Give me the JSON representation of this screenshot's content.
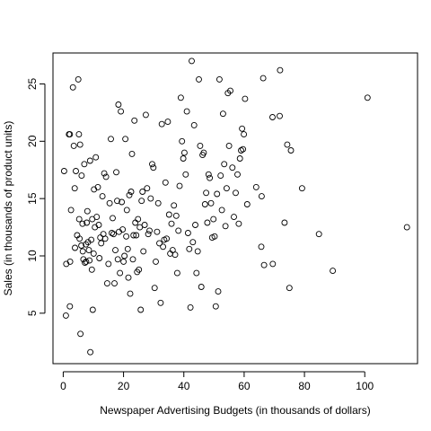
{
  "chart_data": {
    "type": "scatter",
    "title": "",
    "xlabel": "Newspaper Advertising Budgets (in thousands of dollars)",
    "ylabel": "Sales (in thousands of product units)",
    "xlim": [
      -3.4,
      117.5
    ],
    "ylim": [
      0.6,
      27.7
    ],
    "xticks": [
      0,
      20,
      40,
      60,
      80,
      100
    ],
    "yticks": [
      5,
      10,
      15,
      20,
      25
    ],
    "grid": false,
    "legend": "none",
    "points": [
      [
        0.3,
        17.4
      ],
      [
        0.9,
        4.8
      ],
      [
        1.0,
        9.3
      ],
      [
        1.9,
        20.6
      ],
      [
        2.2,
        20.6
      ],
      [
        2.2,
        5.6
      ],
      [
        2.3,
        9.5
      ],
      [
        2.6,
        14.0
      ],
      [
        3.2,
        24.7
      ],
      [
        3.5,
        19.6
      ],
      [
        3.8,
        15.9
      ],
      [
        3.9,
        10.7
      ],
      [
        4.2,
        17.4
      ],
      [
        4.6,
        11.8
      ],
      [
        5.0,
        25.4
      ],
      [
        5.2,
        20.6
      ],
      [
        5.3,
        13.2
      ],
      [
        5.4,
        11.5
      ],
      [
        5.6,
        19.7
      ],
      [
        5.7,
        3.2
      ],
      [
        6.0,
        10.9
      ],
      [
        6.1,
        17.0
      ],
      [
        6.4,
        12.8
      ],
      [
        6.5,
        10.4
      ],
      [
        6.7,
        9.7
      ],
      [
        7.0,
        18.0
      ],
      [
        7.2,
        9.4
      ],
      [
        7.5,
        11.0
      ],
      [
        7.6,
        9.5
      ],
      [
        7.8,
        12.9
      ],
      [
        8.0,
        13.9
      ],
      [
        8.2,
        11.2
      ],
      [
        8.5,
        10.5
      ],
      [
        8.7,
        9.6
      ],
      [
        8.9,
        18.3
      ],
      [
        9.0,
        1.6
      ],
      [
        9.3,
        11.4
      ],
      [
        9.5,
        8.8
      ],
      [
        9.6,
        13.2
      ],
      [
        9.8,
        5.3
      ],
      [
        10.1,
        10.2
      ],
      [
        10.2,
        15.8
      ],
      [
        10.5,
        12.5
      ],
      [
        10.8,
        18.6
      ],
      [
        11.1,
        13.4
      ],
      [
        11.5,
        16.0
      ],
      [
        11.8,
        12.7
      ],
      [
        12.0,
        9.8
      ],
      [
        12.3,
        11.6
      ],
      [
        12.6,
        11.1
      ],
      [
        13.0,
        15.2
      ],
      [
        13.3,
        11.9
      ],
      [
        13.6,
        17.2
      ],
      [
        13.9,
        11.5
      ],
      [
        14.2,
        16.9
      ],
      [
        14.6,
        7.6
      ],
      [
        15.0,
        9.3
      ],
      [
        15.4,
        14.6
      ],
      [
        15.8,
        20.2
      ],
      [
        16.1,
        12.0
      ],
      [
        16.4,
        13.3
      ],
      [
        16.7,
        11.9
      ],
      [
        17.0,
        7.6
      ],
      [
        17.3,
        10.5
      ],
      [
        17.6,
        17.3
      ],
      [
        17.9,
        14.8
      ],
      [
        18.1,
        9.7
      ],
      [
        18.3,
        23.2
      ],
      [
        18.5,
        12.1
      ],
      [
        18.8,
        8.5
      ],
      [
        19.1,
        22.6
      ],
      [
        19.4,
        14.7
      ],
      [
        19.7,
        12.3
      ],
      [
        20.0,
        9.5
      ],
      [
        20.3,
        10.0
      ],
      [
        20.6,
        20.2
      ],
      [
        20.9,
        11.7
      ],
      [
        21.1,
        14.0
      ],
      [
        21.4,
        10.6
      ],
      [
        21.6,
        8.1
      ],
      [
        21.9,
        15.3
      ],
      [
        22.2,
        6.7
      ],
      [
        22.5,
        15.6
      ],
      [
        22.8,
        18.9
      ],
      [
        23.1,
        9.7
      ],
      [
        23.3,
        11.8
      ],
      [
        23.6,
        21.8
      ],
      [
        23.9,
        12.9
      ],
      [
        24.2,
        11.8
      ],
      [
        24.5,
        8.6
      ],
      [
        24.8,
        13.2
      ],
      [
        25.1,
        8.8
      ],
      [
        25.4,
        12.5
      ],
      [
        25.7,
        5.3
      ],
      [
        26.0,
        14.8
      ],
      [
        26.3,
        15.6
      ],
      [
        26.6,
        10.4
      ],
      [
        27.0,
        12.7
      ],
      [
        27.4,
        22.3
      ],
      [
        27.8,
        15.9
      ],
      [
        28.2,
        11.9
      ],
      [
        28.6,
        12.2
      ],
      [
        29.0,
        15.0
      ],
      [
        29.5,
        18.0
      ],
      [
        29.9,
        17.7
      ],
      [
        30.3,
        7.2
      ],
      [
        30.7,
        9.5
      ],
      [
        31.1,
        12.1
      ],
      [
        31.5,
        14.6
      ],
      [
        31.9,
        11.1
      ],
      [
        32.3,
        5.9
      ],
      [
        32.7,
        21.5
      ],
      [
        33.1,
        10.8
      ],
      [
        33.5,
        11.4
      ],
      [
        33.9,
        16.4
      ],
      [
        34.3,
        11.5
      ],
      [
        34.7,
        21.7
      ],
      [
        35.1,
        13.6
      ],
      [
        35.5,
        10.2
      ],
      [
        35.9,
        12.8
      ],
      [
        36.3,
        10.5
      ],
      [
        36.7,
        14.4
      ],
      [
        37.1,
        10.1
      ],
      [
        37.5,
        13.5
      ],
      [
        37.8,
        8.5
      ],
      [
        38.2,
        12.2
      ],
      [
        38.6,
        16.1
      ],
      [
        39.0,
        23.8
      ],
      [
        39.4,
        20.0
      ],
      [
        39.8,
        18.5
      ],
      [
        40.2,
        19.0
      ],
      [
        40.6,
        17.1
      ],
      [
        41.0,
        22.6
      ],
      [
        41.4,
        12.0
      ],
      [
        41.8,
        10.6
      ],
      [
        42.2,
        5.5
      ],
      [
        42.6,
        27.0
      ],
      [
        43.0,
        11.2
      ],
      [
        43.4,
        21.4
      ],
      [
        43.8,
        12.7
      ],
      [
        44.2,
        8.5
      ],
      [
        44.6,
        10.4
      ],
      [
        45.0,
        25.4
      ],
      [
        45.4,
        19.6
      ],
      [
        45.8,
        7.3
      ],
      [
        46.2,
        18.8
      ],
      [
        46.6,
        19.0
      ],
      [
        47.0,
        14.5
      ],
      [
        47.4,
        15.5
      ],
      [
        47.8,
        12.9
      ],
      [
        48.2,
        17.1
      ],
      [
        48.6,
        16.8
      ],
      [
        49.0,
        14.6
      ],
      [
        49.4,
        11.6
      ],
      [
        49.8,
        13.2
      ],
      [
        50.2,
        11.7
      ],
      [
        50.6,
        5.6
      ],
      [
        51.0,
        15.4
      ],
      [
        51.4,
        6.9
      ],
      [
        51.8,
        25.4
      ],
      [
        52.2,
        17.0
      ],
      [
        52.6,
        14.0
      ],
      [
        53.0,
        22.4
      ],
      [
        53.4,
        18.0
      ],
      [
        53.8,
        12.6
      ],
      [
        54.2,
        15.9
      ],
      [
        54.6,
        24.2
      ],
      [
        55.0,
        19.6
      ],
      [
        55.4,
        24.4
      ],
      [
        56.1,
        17.7
      ],
      [
        56.6,
        13.4
      ],
      [
        57.2,
        15.5
      ],
      [
        57.8,
        17.1
      ],
      [
        58.2,
        12.8
      ],
      [
        58.6,
        18.5
      ],
      [
        59.0,
        19.2
      ],
      [
        59.3,
        21.1
      ],
      [
        59.6,
        19.3
      ],
      [
        59.9,
        20.6
      ],
      [
        60.3,
        23.7
      ],
      [
        61.0,
        14.5
      ],
      [
        64.0,
        16.0
      ],
      [
        65.7,
        10.8
      ],
      [
        65.8,
        15.2
      ],
      [
        66.3,
        25.5
      ],
      [
        66.6,
        9.2
      ],
      [
        69.4,
        22.1
      ],
      [
        69.5,
        9.3
      ],
      [
        71.8,
        22.2
      ],
      [
        71.9,
        26.2
      ],
      [
        73.4,
        12.9
      ],
      [
        74.3,
        19.7
      ],
      [
        75.0,
        7.2
      ],
      [
        75.5,
        19.2
      ],
      [
        79.2,
        15.9
      ],
      [
        84.8,
        11.9
      ],
      [
        89.4,
        8.7
      ],
      [
        100.9,
        23.8
      ],
      [
        114.0,
        12.5
      ]
    ]
  }
}
